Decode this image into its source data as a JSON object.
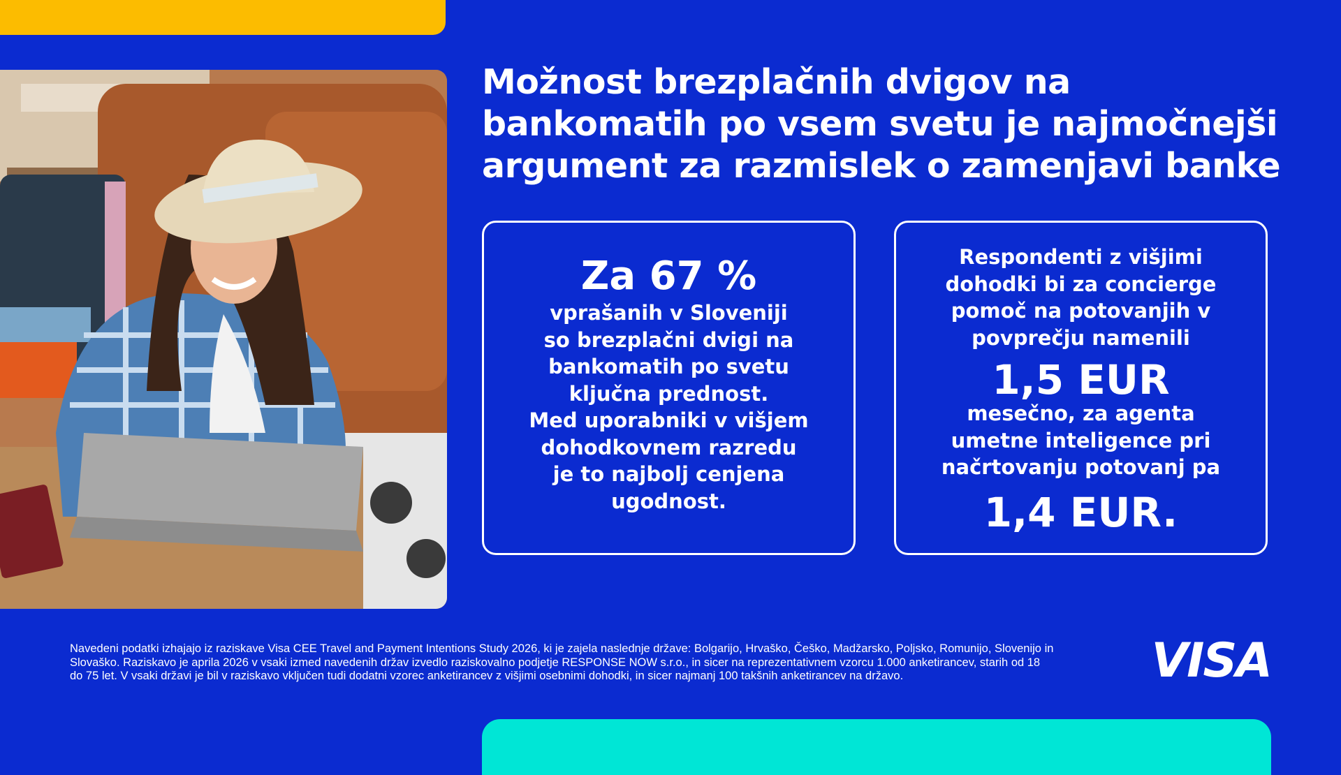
{
  "headline": {
    "lines": [
      "Možnost brezplačnih dvigov na",
      "bankomatih po vsem svetu je najmočnejši",
      "argument za razmislek o zamenjavi banke"
    ]
  },
  "card_left": {
    "big": "Za 67 %",
    "lines": [
      "vprašanih v Sloveniji",
      "so brezplačni dvigi na",
      "bankomatih po svetu",
      "ključna prednost.",
      "Med uporabniki v višjem",
      "dohodkovnem razredu",
      "je to najbolj cenjena",
      "ugodnost."
    ]
  },
  "card_right": {
    "intro_lines": [
      "Respondenti z višjimi",
      "dohodki bi za concierge",
      "pomoč na potovanjih v",
      "povprečju namenili"
    ],
    "value1": "1,5 EUR",
    "mid_lines": [
      "mesečno, za agenta",
      "umetne inteligence pri",
      "načrtovanju potovanj pa"
    ],
    "value2": "1,4 EUR."
  },
  "footnote": {
    "lines": [
      "Navedeni podatki izhajajo iz raziskave Visa CEE Travel and Payment Intentions Study 2026, ki je zajela naslednje države: Bolgarijo, Hrvaško, Češko, Madžarsko, Poljsko, Romunijo, Slovenijo in",
      "Slovaško.  Raziskavo je aprila 2026 v vsaki izmed navedenih držav izvedlo raziskovalno podjetje RESPONSE NOW s.r.o., in sicer na reprezentativnem vzorcu 1.000 anketirancev, starih od 18",
      "do 75 let. V vsaki državi je bil v raziskavo vključen tudi dodatni vzorec anketirancev z višjimi osebnimi dohodki, in sicer najmanj 100 takšnih anketirancev na državo."
    ]
  },
  "logo": {
    "text": "VISA"
  },
  "colors": {
    "background": "#0b2bd0",
    "accent_yellow": "#fcbc00",
    "accent_teal": "#00e6d6",
    "text": "#ffffff"
  },
  "icons": {
    "photo": "woman-with-laptop-photo"
  }
}
